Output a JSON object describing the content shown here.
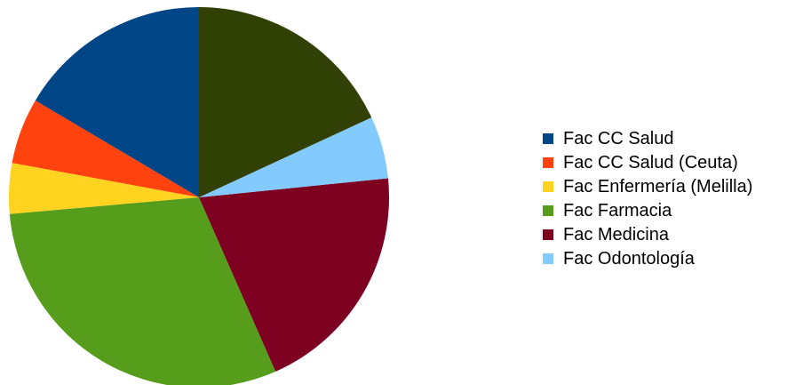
{
  "chart_data": {
    "type": "pie",
    "title": "",
    "legend_position": "right",
    "series": [
      {
        "name": "Fac CC Salud",
        "value": 16.5,
        "color": "#004586"
      },
      {
        "name": "Fac CC Salud (Ceuta)",
        "value": 5.6,
        "color": "#FF420E"
      },
      {
        "name": "Fac Enfermería (Melilla)",
        "value": 4.3,
        "color": "#FFD320"
      },
      {
        "name": "Fac Farmacia",
        "value": 30.2,
        "color": "#579D1C"
      },
      {
        "name": "Fac Medicina",
        "value": 20.0,
        "color": "#7E0021"
      },
      {
        "name": "Fac Odontología",
        "value": 5.3,
        "color": "#83CAFF"
      },
      {
        "name": "",
        "value": 18.1,
        "color": "#314004"
      }
    ]
  }
}
